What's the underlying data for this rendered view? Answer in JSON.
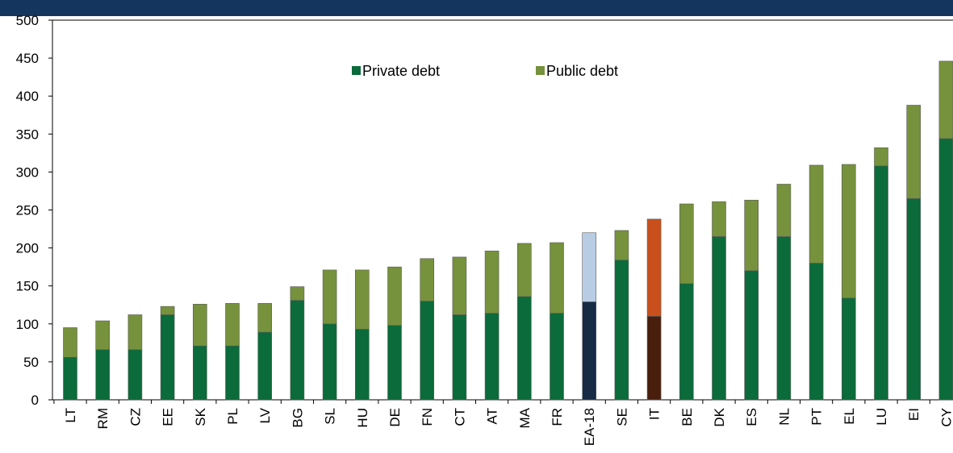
{
  "chart_data": {
    "type": "bar",
    "stacked": true,
    "categories": [
      "LT",
      "RM",
      "CZ",
      "EE",
      "SK",
      "PL",
      "LV",
      "BG",
      "SL",
      "HU",
      "DE",
      "FN",
      "CT",
      "AT",
      "MA",
      "FR",
      "EA-18",
      "SE",
      "IT",
      "BE",
      "DK",
      "ES",
      "NL",
      "PT",
      "EL",
      "LU",
      "EI",
      "CY"
    ],
    "series": [
      {
        "name": "Private debt",
        "values": [
          56,
          66,
          66,
          112,
          71,
          71,
          89,
          131,
          100,
          93,
          98,
          130,
          112,
          114,
          136,
          114,
          129,
          184,
          110,
          153,
          215,
          170,
          215,
          180,
          134,
          308,
          265,
          344
        ]
      },
      {
        "name": "Public debt",
        "values": [
          39,
          38,
          46,
          11,
          55,
          56,
          38,
          18,
          71,
          78,
          77,
          56,
          76,
          82,
          70,
          93,
          91,
          39,
          128,
          105,
          46,
          93,
          69,
          129,
          176,
          24,
          123,
          102
        ]
      }
    ],
    "ylim": [
      0,
      500
    ],
    "yticks": [
      0,
      50,
      100,
      150,
      200,
      250,
      300,
      350,
      400,
      450,
      500
    ],
    "legend_position": "top-center",
    "grid": false,
    "colors": {
      "private": "#0b6b3a",
      "public": "#76923c",
      "highlight": {
        "EA-18": {
          "private": "#172b45",
          "public": "#b8cce4"
        },
        "IT": {
          "private": "#4a1e0c",
          "public": "#c9501c"
        }
      },
      "header_band": "#14365e",
      "axis": "#000000",
      "bar_outline": "#5a5a5a"
    }
  }
}
